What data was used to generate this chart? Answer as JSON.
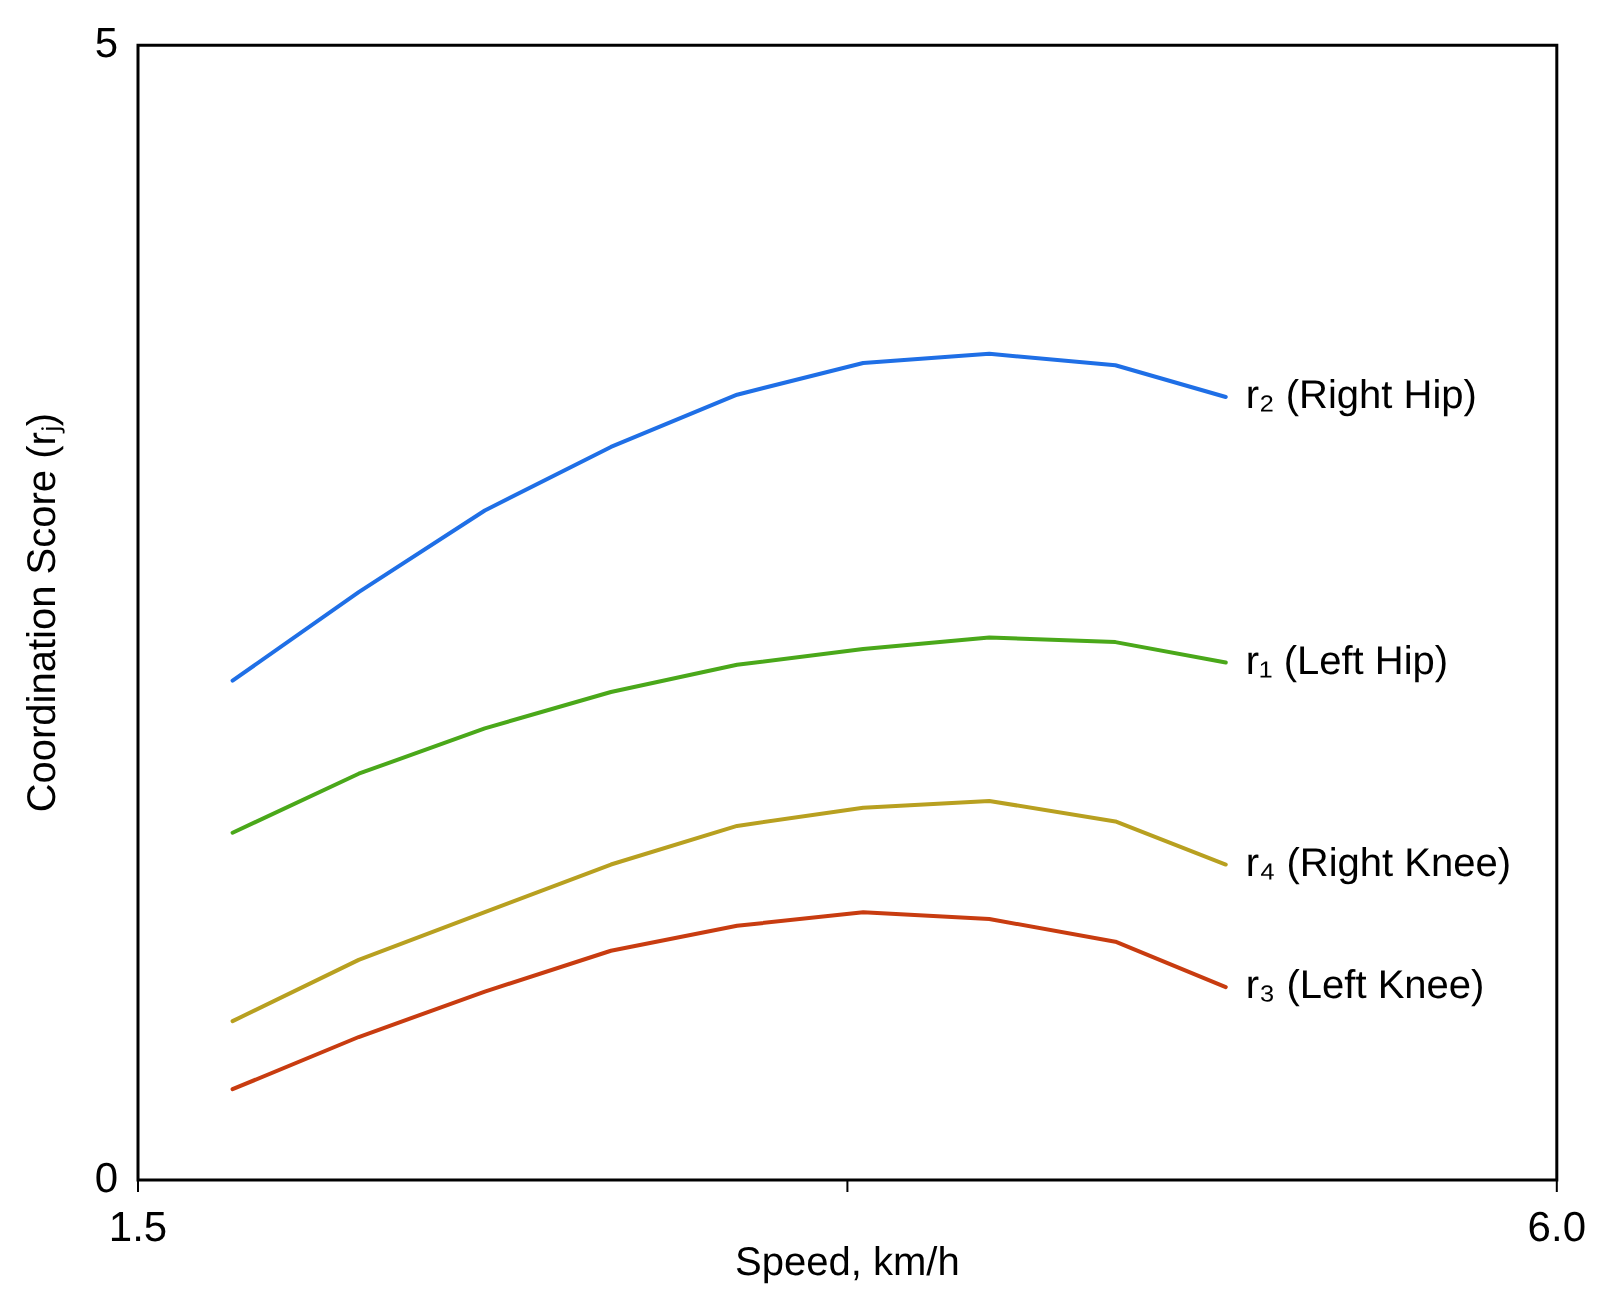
{
  "chart_data": {
    "type": "line",
    "xlabel": "Speed, km/h",
    "ylabel": "Coordination Score (rⱼ)",
    "x": [
      1.8,
      2.2,
      2.6,
      3.0,
      3.4,
      3.8,
      4.2,
      4.6,
      4.95
    ],
    "xlim": [
      1.5,
      6.0
    ],
    "xticks": [
      {
        "value": 1.5,
        "label": "1.5"
      },
      {
        "value": 3.75,
        "label": null
      },
      {
        "value": 6.0,
        "label": "6.0"
      }
    ],
    "ylim": [
      0,
      5
    ],
    "yticks": [
      0,
      5
    ],
    "grid": false,
    "legend": false,
    "marker": "none",
    "line_style": "solid",
    "series": [
      {
        "name": "r₂ (Right Hip)",
        "color": "#1f6fe6",
        "values": [
          2.2,
          2.59,
          2.95,
          3.23,
          3.46,
          3.6,
          3.64,
          3.59,
          3.45
        ]
      },
      {
        "name": "r₁ (Left Hip)",
        "color": "#4aa81a",
        "values": [
          1.53,
          1.79,
          1.99,
          2.15,
          2.27,
          2.34,
          2.39,
          2.37,
          2.28
        ]
      },
      {
        "name": "r₄ (Right Knee)",
        "color": "#b8a020",
        "values": [
          0.7,
          0.97,
          1.18,
          1.39,
          1.56,
          1.64,
          1.67,
          1.58,
          1.39
        ]
      },
      {
        "name": "r₃ (Left Knee)",
        "color": "#c83c10",
        "values": [
          0.4,
          0.63,
          0.83,
          1.01,
          1.12,
          1.18,
          1.15,
          1.05,
          0.85
        ]
      }
    ]
  }
}
